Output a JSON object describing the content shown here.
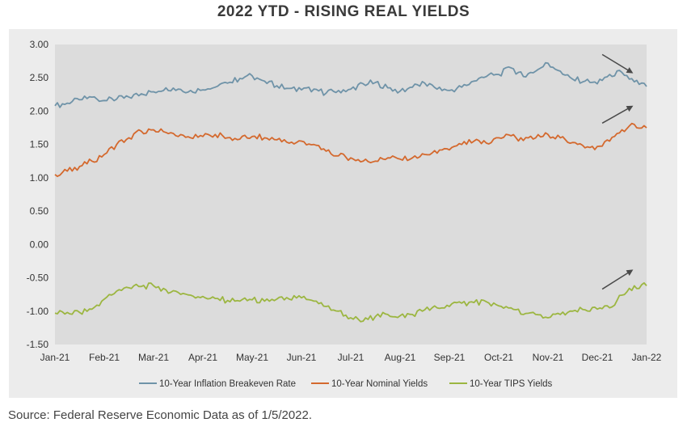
{
  "chart_data": {
    "type": "line",
    "title": "2022 YTD - RISING REAL YIELDS",
    "source": "Source: Federal Reserve Economic Data as of 1/5/2022.",
    "x_tick_labels": [
      "Jan-21",
      "Feb-21",
      "Mar-21",
      "Apr-21",
      "May-21",
      "Jun-21",
      "Jul-21",
      "Aug-21",
      "Sep-21",
      "Oct-21",
      "Nov-21",
      "Dec-21",
      "Jan-22"
    ],
    "y_tick_labels": [
      "3.00",
      "2.50",
      "2.00",
      "1.50",
      "1.00",
      "0.50",
      "0.00",
      "-0.50",
      "-1.00",
      "-1.50"
    ],
    "ylim": [
      -1.5,
      3.0
    ],
    "grid": false,
    "legend_position": "bottom",
    "colors": {
      "breakeven": "#6f93a8",
      "nominal": "#d4692e",
      "tips": "#9cb641",
      "plot_bg": "#dcdcdc",
      "outer_bg": "#ececec",
      "arrow": "#4a4a4a"
    },
    "series": [
      {
        "name": "10-Year Inflation Breakeven Rate",
        "key": "breakeven",
        "x": [
          0,
          0.25,
          0.5,
          0.75,
          1,
          1.25,
          1.5,
          1.75,
          2,
          2.25,
          2.5,
          2.75,
          3,
          3.25,
          3.5,
          3.75,
          4,
          4.25,
          4.5,
          4.75,
          5,
          5.25,
          5.5,
          5.75,
          6,
          6.25,
          6.5,
          6.75,
          7,
          7.25,
          7.5,
          7.75,
          8,
          8.25,
          8.5,
          8.75,
          9,
          9.25,
          9.5,
          9.75,
          10,
          10.25,
          10.5,
          10.75,
          11,
          11.25,
          11.5,
          11.75,
          12
        ],
        "y": [
          2.08,
          2.12,
          2.17,
          2.21,
          2.16,
          2.18,
          2.21,
          2.26,
          2.29,
          2.35,
          2.33,
          2.31,
          2.32,
          2.36,
          2.42,
          2.49,
          2.53,
          2.45,
          2.38,
          2.34,
          2.32,
          2.33,
          2.27,
          2.31,
          2.33,
          2.41,
          2.43,
          2.35,
          2.3,
          2.36,
          2.42,
          2.33,
          2.31,
          2.36,
          2.45,
          2.52,
          2.55,
          2.65,
          2.52,
          2.6,
          2.72,
          2.6,
          2.48,
          2.45,
          2.41,
          2.55,
          2.58,
          2.44,
          2.37
        ]
      },
      {
        "name": "10-Year Nominal Yields",
        "key": "nominal",
        "x": [
          0,
          0.25,
          0.5,
          0.75,
          1,
          1.25,
          1.5,
          1.75,
          2,
          2.25,
          2.5,
          2.75,
          3,
          3.25,
          3.5,
          3.75,
          4,
          4.25,
          4.5,
          4.75,
          5,
          5.25,
          5.5,
          5.75,
          6,
          6.25,
          6.5,
          6.75,
          7,
          7.25,
          7.5,
          7.75,
          8,
          8.25,
          8.5,
          8.75,
          9,
          9.25,
          9.5,
          9.75,
          10,
          10.25,
          10.5,
          10.75,
          11,
          11.25,
          11.5,
          11.75,
          12
        ],
        "y": [
          1.05,
          1.1,
          1.17,
          1.25,
          1.35,
          1.5,
          1.6,
          1.7,
          1.72,
          1.68,
          1.62,
          1.6,
          1.62,
          1.65,
          1.6,
          1.58,
          1.62,
          1.6,
          1.57,
          1.52,
          1.55,
          1.5,
          1.4,
          1.33,
          1.3,
          1.25,
          1.25,
          1.3,
          1.28,
          1.3,
          1.35,
          1.37,
          1.42,
          1.5,
          1.55,
          1.52,
          1.6,
          1.63,
          1.56,
          1.6,
          1.65,
          1.6,
          1.53,
          1.45,
          1.47,
          1.55,
          1.72,
          1.8,
          1.75
        ]
      },
      {
        "name": "10-Year TIPS Yields",
        "key": "tips",
        "x": [
          0,
          0.25,
          0.5,
          0.75,
          1,
          1.25,
          1.5,
          1.75,
          2,
          2.25,
          2.5,
          2.75,
          3,
          3.25,
          3.5,
          3.75,
          4,
          4.25,
          4.5,
          4.75,
          5,
          5.25,
          5.5,
          5.75,
          6,
          6.25,
          6.5,
          6.75,
          7,
          7.25,
          7.5,
          7.75,
          8,
          8.25,
          8.5,
          8.75,
          9,
          9.25,
          9.5,
          9.75,
          10,
          10.25,
          10.5,
          10.75,
          11,
          11.25,
          11.5,
          11.75,
          12
        ],
        "y": [
          -1.03,
          -1.02,
          -1.02,
          -0.97,
          -0.82,
          -0.7,
          -0.65,
          -0.63,
          -0.62,
          -0.68,
          -0.72,
          -0.76,
          -0.78,
          -0.81,
          -0.84,
          -0.85,
          -0.83,
          -0.85,
          -0.82,
          -0.82,
          -0.8,
          -0.85,
          -0.93,
          -1.0,
          -1.1,
          -1.15,
          -1.08,
          -1.05,
          -1.07,
          -1.05,
          -0.98,
          -0.95,
          -0.93,
          -0.88,
          -0.87,
          -0.86,
          -0.92,
          -0.95,
          -1.05,
          -1.05,
          -1.1,
          -1.05,
          -1.0,
          -0.98,
          -0.97,
          -0.95,
          -0.76,
          -0.62,
          -0.62
        ]
      }
    ]
  }
}
